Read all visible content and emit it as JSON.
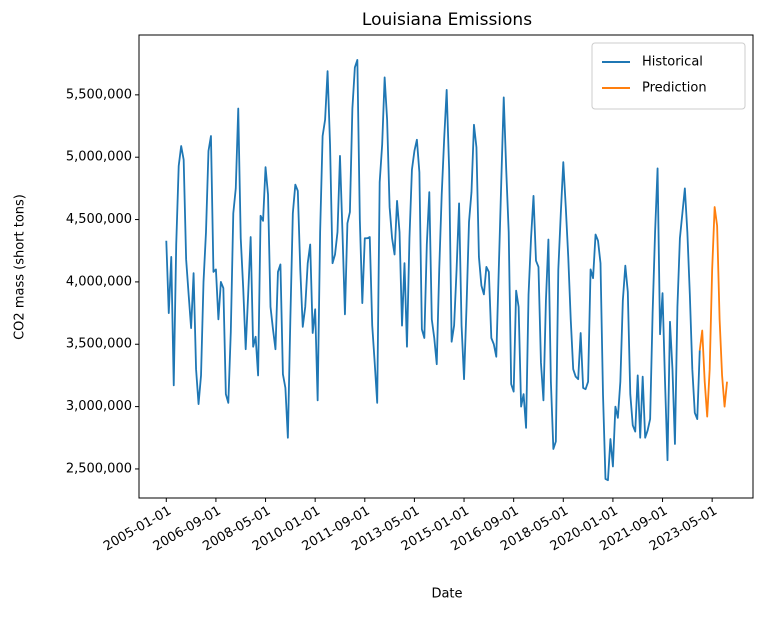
{
  "chart_data": {
    "type": "line",
    "title": "Louisiana Emissions",
    "xlabel": "Date",
    "ylabel": "CO2 mass (short tons)",
    "xlim": [
      "2004-02-01",
      "2024-09-15"
    ],
    "ylim": [
      2267000,
      5980000
    ],
    "xticks": [
      "2005-01-01",
      "2006-09-01",
      "2008-05-01",
      "2010-01-01",
      "2011-09-01",
      "2013-05-01",
      "2015-01-01",
      "2016-09-01",
      "2018-05-01",
      "2020-01-01",
      "2021-09-01",
      "2023-05-01"
    ],
    "yticks": [
      {
        "value": 2500000,
        "label": "2,500,000"
      },
      {
        "value": 3000000,
        "label": "3,000,000"
      },
      {
        "value": 3500000,
        "label": "3,500,000"
      },
      {
        "value": 4000000,
        "label": "4,000,000"
      },
      {
        "value": 4500000,
        "label": "4,500,000"
      },
      {
        "value": 5000000,
        "label": "5,000,000"
      },
      {
        "value": 5500000,
        "label": "5,500,000"
      }
    ],
    "legend": "upper right",
    "grid": false,
    "series": [
      {
        "name": "Historical",
        "color": "#1f77b4",
        "x": [
          "2005-01-01",
          "2005-02-01",
          "2005-03-01",
          "2005-04-01",
          "2005-05-01",
          "2005-06-01",
          "2005-07-01",
          "2005-08-01",
          "2005-09-01",
          "2005-10-01",
          "2005-11-01",
          "2005-12-01",
          "2006-01-01",
          "2006-02-01",
          "2006-03-01",
          "2006-04-01",
          "2006-05-01",
          "2006-06-01",
          "2006-07-01",
          "2006-08-01",
          "2006-09-01",
          "2006-10-01",
          "2006-11-01",
          "2006-12-01",
          "2007-01-01",
          "2007-02-01",
          "2007-03-01",
          "2007-04-01",
          "2007-05-01",
          "2007-06-01",
          "2007-07-01",
          "2007-08-01",
          "2007-09-01",
          "2007-10-01",
          "2007-11-01",
          "2007-12-01",
          "2008-01-01",
          "2008-02-01",
          "2008-03-01",
          "2008-04-01",
          "2008-05-01",
          "2008-06-01",
          "2008-07-01",
          "2008-08-01",
          "2008-09-01",
          "2008-10-01",
          "2008-11-01",
          "2008-12-01",
          "2009-01-01",
          "2009-02-01",
          "2009-03-01",
          "2009-04-01",
          "2009-05-01",
          "2009-06-01",
          "2009-07-01",
          "2009-08-01",
          "2009-09-01",
          "2009-10-01",
          "2009-11-01",
          "2009-12-01",
          "2010-01-01",
          "2010-02-01",
          "2010-03-01",
          "2010-04-01",
          "2010-05-01",
          "2010-06-01",
          "2010-07-01",
          "2010-08-01",
          "2010-09-01",
          "2010-10-01",
          "2010-11-01",
          "2010-12-01",
          "2011-01-01",
          "2011-02-01",
          "2011-03-01",
          "2011-04-01",
          "2011-05-01",
          "2011-06-01",
          "2011-07-01",
          "2011-08-01",
          "2011-09-01",
          "2011-10-01",
          "2011-11-01",
          "2011-12-01",
          "2012-01-01",
          "2012-02-01",
          "2012-03-01",
          "2012-04-01",
          "2012-05-01",
          "2012-06-01",
          "2012-07-01",
          "2012-08-01",
          "2012-09-01",
          "2012-10-01",
          "2012-11-01",
          "2012-12-01",
          "2013-01-01",
          "2013-02-01",
          "2013-03-01",
          "2013-04-01",
          "2013-05-01",
          "2013-06-01",
          "2013-07-01",
          "2013-08-01",
          "2013-09-01",
          "2013-10-01",
          "2013-11-01",
          "2013-12-01",
          "2014-01-01",
          "2014-02-01",
          "2014-03-01",
          "2014-04-01",
          "2014-05-01",
          "2014-06-01",
          "2014-07-01",
          "2014-08-01",
          "2014-09-01",
          "2014-10-01",
          "2014-11-01",
          "2014-12-01",
          "2015-01-01",
          "2015-02-01",
          "2015-03-01",
          "2015-04-01",
          "2015-05-01",
          "2015-06-01",
          "2015-07-01",
          "2015-08-01",
          "2015-09-01",
          "2015-10-01",
          "2015-11-01",
          "2015-12-01",
          "2016-01-01",
          "2016-02-01",
          "2016-03-01",
          "2016-04-01",
          "2016-05-01",
          "2016-06-01",
          "2016-07-01",
          "2016-08-01",
          "2016-09-01",
          "2016-10-01",
          "2016-11-01",
          "2016-12-01",
          "2017-01-01",
          "2017-02-01",
          "2017-03-01",
          "2017-04-01",
          "2017-05-01",
          "2017-06-01",
          "2017-07-01",
          "2017-08-01",
          "2017-09-01",
          "2017-10-01",
          "2017-11-01",
          "2017-12-01",
          "2018-01-01",
          "2018-02-01",
          "2018-03-01",
          "2018-04-01",
          "2018-05-01",
          "2018-06-01",
          "2018-07-01",
          "2018-08-01",
          "2018-09-01",
          "2018-10-01",
          "2018-11-01",
          "2018-12-01",
          "2019-01-01",
          "2019-02-01",
          "2019-03-01",
          "2019-04-01",
          "2019-05-01",
          "2019-06-01",
          "2019-07-01",
          "2019-08-01",
          "2019-09-01",
          "2019-10-01",
          "2019-11-01",
          "2019-12-01",
          "2020-01-01",
          "2020-02-01",
          "2020-03-01",
          "2020-04-01",
          "2020-05-01",
          "2020-06-01",
          "2020-07-01",
          "2020-08-01",
          "2020-09-01",
          "2020-10-01",
          "2020-11-01",
          "2020-12-01",
          "2021-01-01",
          "2021-02-01",
          "2021-03-01",
          "2021-04-01",
          "2021-05-01",
          "2021-06-01",
          "2021-07-01",
          "2021-08-01",
          "2021-09-01",
          "2021-10-01",
          "2021-11-01",
          "2021-12-01",
          "2022-01-01",
          "2022-02-01",
          "2022-03-01",
          "2022-04-01",
          "2022-05-01",
          "2022-06-01",
          "2022-07-01",
          "2022-08-01",
          "2022-09-01",
          "2022-10-01",
          "2022-11-01",
          "2022-12-01"
        ],
        "values": [
          4330000,
          3750000,
          4200000,
          3170000,
          4300000,
          4930000,
          5090000,
          4980000,
          4180000,
          3900000,
          3630000,
          4070000,
          3300000,
          3020000,
          3250000,
          4000000,
          4400000,
          5050000,
          5170000,
          4080000,
          4100000,
          3700000,
          4000000,
          3950000,
          3100000,
          3030000,
          3600000,
          4550000,
          4750000,
          5390000,
          4350000,
          3950000,
          3460000,
          3900000,
          4360000,
          3480000,
          3560000,
          3250000,
          4530000,
          4490000,
          4920000,
          4700000,
          3800000,
          3620000,
          3460000,
          4080000,
          4140000,
          3260000,
          3150000,
          2750000,
          3700000,
          4550000,
          4780000,
          4730000,
          4100000,
          3640000,
          3800000,
          4150000,
          4300000,
          3590000,
          3780000,
          3050000,
          4400000,
          5170000,
          5300000,
          5690000,
          5100000,
          4150000,
          4220000,
          4400000,
          5010000,
          4400000,
          3740000,
          4470000,
          4560000,
          5390000,
          5720000,
          5780000,
          4500000,
          3830000,
          4350000,
          4350000,
          4360000,
          3650000,
          3350000,
          3030000,
          4800000,
          5100000,
          5640000,
          5300000,
          4600000,
          4350000,
          4220000,
          4650000,
          4400000,
          3650000,
          4150000,
          3480000,
          4350000,
          4900000,
          5050000,
          5140000,
          4880000,
          3620000,
          3550000,
          4300000,
          4720000,
          3700000,
          3550000,
          3340000,
          4100000,
          4700000,
          5150000,
          5540000,
          4900000,
          3520000,
          3650000,
          4100000,
          4630000,
          3650000,
          3220000,
          3800000,
          4480000,
          4720000,
          5260000,
          5080000,
          4200000,
          3970000,
          3900000,
          4120000,
          4080000,
          3550000,
          3500000,
          3400000,
          4100000,
          4800000,
          5480000,
          4900000,
          4400000,
          3180000,
          3120000,
          3930000,
          3800000,
          3000000,
          3100000,
          2830000,
          3900000,
          4350000,
          4690000,
          4170000,
          4120000,
          3350000,
          3050000,
          3850000,
          4340000,
          3200000,
          2660000,
          2720000,
          4100000,
          4550000,
          4960000,
          4600000,
          4200000,
          3700000,
          3300000,
          3240000,
          3220000,
          3590000,
          3150000,
          3140000,
          3200000,
          4100000,
          4030000,
          4380000,
          4330000,
          4150000,
          3100000,
          2420000,
          2410000,
          2740000,
          2520000,
          3000000,
          2910000,
          3200000,
          3850000,
          4130000,
          3920000,
          3100000,
          2850000,
          2800000,
          3250000,
          2750000,
          3240000,
          2750000,
          2810000,
          2900000,
          3750000,
          4400000,
          4910000,
          3580000,
          3910000,
          3200000,
          2570000,
          3680000,
          3300000,
          2700000,
          3800000,
          4350000,
          4550000,
          4750000,
          4400000,
          3900000,
          3300000,
          2950000,
          2900000,
          3450000
        ]
      },
      {
        "name": "Prediction",
        "color": "#ff7f0e",
        "x": [
          "2022-12-01",
          "2023-01-01",
          "2023-02-01",
          "2023-03-01",
          "2023-04-01",
          "2023-05-01",
          "2023-06-01",
          "2023-07-01",
          "2023-08-01",
          "2023-09-01",
          "2023-10-01",
          "2023-11-01"
        ],
        "values": [
          3450000,
          3610000,
          3200000,
          2920000,
          3300000,
          4100000,
          4600000,
          4450000,
          3700000,
          3250000,
          3000000,
          3200000
        ]
      }
    ]
  }
}
